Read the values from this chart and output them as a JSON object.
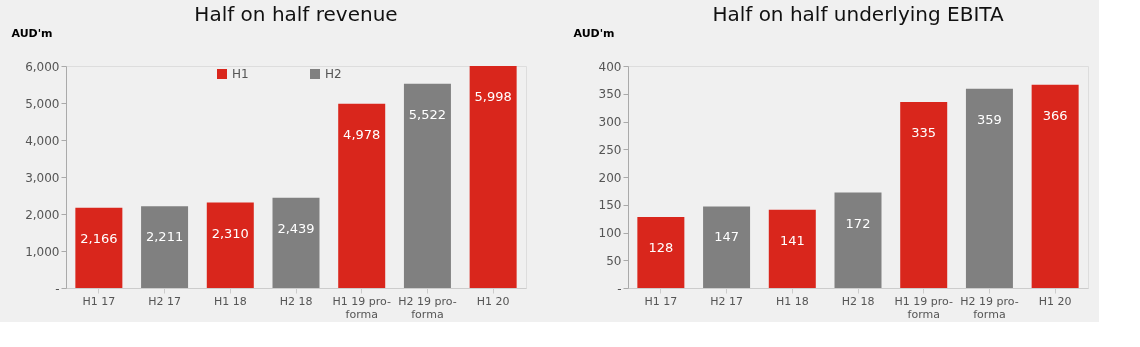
{
  "chart_data": [
    {
      "type": "bar",
      "title": "Half on half revenue",
      "ylabel": "AUD'm",
      "categories": [
        "H1 17",
        "H2 17",
        "H1 18",
        "H2 18",
        "H1 19 pro-forma",
        "H2 19 pro-forma",
        "H1 20"
      ],
      "series": [
        {
          "name": "H1",
          "color": "#d9261c",
          "values": [
            2166,
            null,
            2310,
            null,
            4978,
            null,
            5998
          ]
        },
        {
          "name": "H2",
          "color": "#808080",
          "values": [
            null,
            2211,
            null,
            2439,
            null,
            5522,
            null
          ]
        }
      ],
      "ylim": [
        0,
        6000
      ],
      "yticks": [
        {
          "value": 0,
          "label": "-"
        },
        {
          "value": 1000,
          "label": "1,000"
        },
        {
          "value": 2000,
          "label": "2,000"
        },
        {
          "value": 3000,
          "label": "3,000"
        },
        {
          "value": 4000,
          "label": "4,000"
        },
        {
          "value": 5000,
          "label": "5,000"
        },
        {
          "value": 6000,
          "label": "6,000"
        }
      ],
      "grid": false,
      "legend": "top",
      "value_labels": [
        [
          "2,166",
          null,
          "2,310",
          null,
          "4,978",
          null,
          "5,998"
        ],
        [
          null,
          "2,211",
          null,
          "2,439",
          null,
          "5,522",
          null
        ]
      ]
    },
    {
      "type": "bar",
      "title": "Half on half underlying EBITA",
      "ylabel": "AUD'm",
      "categories": [
        "H1 17",
        "H2 17",
        "H1 18",
        "H2 18",
        "H1 19 pro-forma",
        "H2 19 pro-forma",
        "H1 20"
      ],
      "series": [
        {
          "name": "H1",
          "color": "#d9261c",
          "values": [
            128,
            null,
            141,
            null,
            335,
            null,
            366
          ]
        },
        {
          "name": "H2",
          "color": "#808080",
          "values": [
            null,
            147,
            null,
            172,
            null,
            359,
            null
          ]
        }
      ],
      "ylim": [
        0,
        400
      ],
      "yticks": [
        {
          "value": 0,
          "label": "-"
        },
        50,
        100,
        150,
        200,
        250,
        300,
        350,
        400
      ],
      "grid": false,
      "legend": "top",
      "data_labels": true
    }
  ]
}
